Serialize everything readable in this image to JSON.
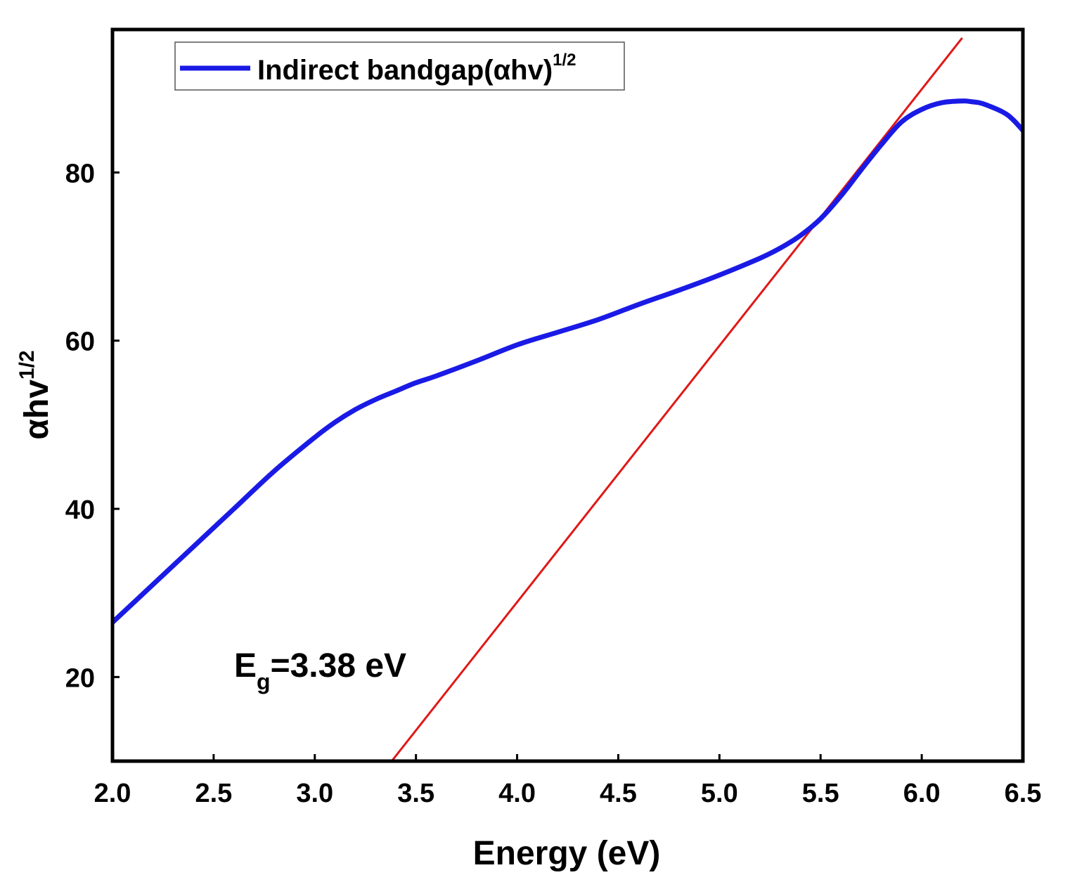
{
  "chart_data": {
    "type": "line",
    "xlabel": "Energy (eV)",
    "ylabel": {
      "base": "αhv",
      "sup": "1/2"
    },
    "xlim": [
      2.0,
      6.5
    ],
    "ylim": [
      10,
      97
    ],
    "xticks": [
      2.0,
      2.5,
      3.0,
      3.5,
      4.0,
      4.5,
      5.0,
      5.5,
      6.0,
      6.5
    ],
    "xtick_labels": [
      "2.0",
      "2.5",
      "3.0",
      "3.5",
      "4.0",
      "4.5",
      "5.0",
      "5.5",
      "6.0",
      "6.5"
    ],
    "yticks": [
      20,
      40,
      60,
      80
    ],
    "ytick_labels": [
      "20",
      "40",
      "60",
      "80"
    ],
    "grid": false,
    "legend": {
      "position": "top-left",
      "entries": [
        {
          "name": "Indirect bandgap(αhv)",
          "sup": "1/2",
          "color": "#1a1ae6"
        }
      ]
    },
    "series": [
      {
        "name": "Indirect bandgap(αhv)^1/2",
        "color": "#1a1ae6",
        "x": [
          2.0,
          2.2,
          2.4,
          2.6,
          2.8,
          3.0,
          3.1,
          3.2,
          3.3,
          3.4,
          3.5,
          3.6,
          3.8,
          4.0,
          4.2,
          4.4,
          4.6,
          4.8,
          5.0,
          5.2,
          5.3,
          5.4,
          5.5,
          5.6,
          5.7,
          5.8,
          5.9,
          6.0,
          6.1,
          6.2,
          6.25,
          6.3,
          6.4,
          6.45,
          6.5
        ],
        "y": [
          26.5,
          31.0,
          35.5,
          40.0,
          44.5,
          48.5,
          50.3,
          51.8,
          53.0,
          54.0,
          55.0,
          55.8,
          57.6,
          59.5,
          61.0,
          62.5,
          64.3,
          66.0,
          67.8,
          69.8,
          71.0,
          72.5,
          74.5,
          77.2,
          80.3,
          83.3,
          86.0,
          87.5,
          88.3,
          88.5,
          88.4,
          88.2,
          87.2,
          86.3,
          85.0
        ]
      }
    ],
    "fit_line": {
      "name": "tangent fit",
      "color": "#e01818",
      "x": [
        3.38,
        6.2
      ],
      "y": [
        10,
        96
      ]
    },
    "annotations": [
      {
        "text": "E",
        "sub": "g",
        "value": "=3.38 eV",
        "x": 3.33,
        "y": 19.5
      }
    ]
  }
}
